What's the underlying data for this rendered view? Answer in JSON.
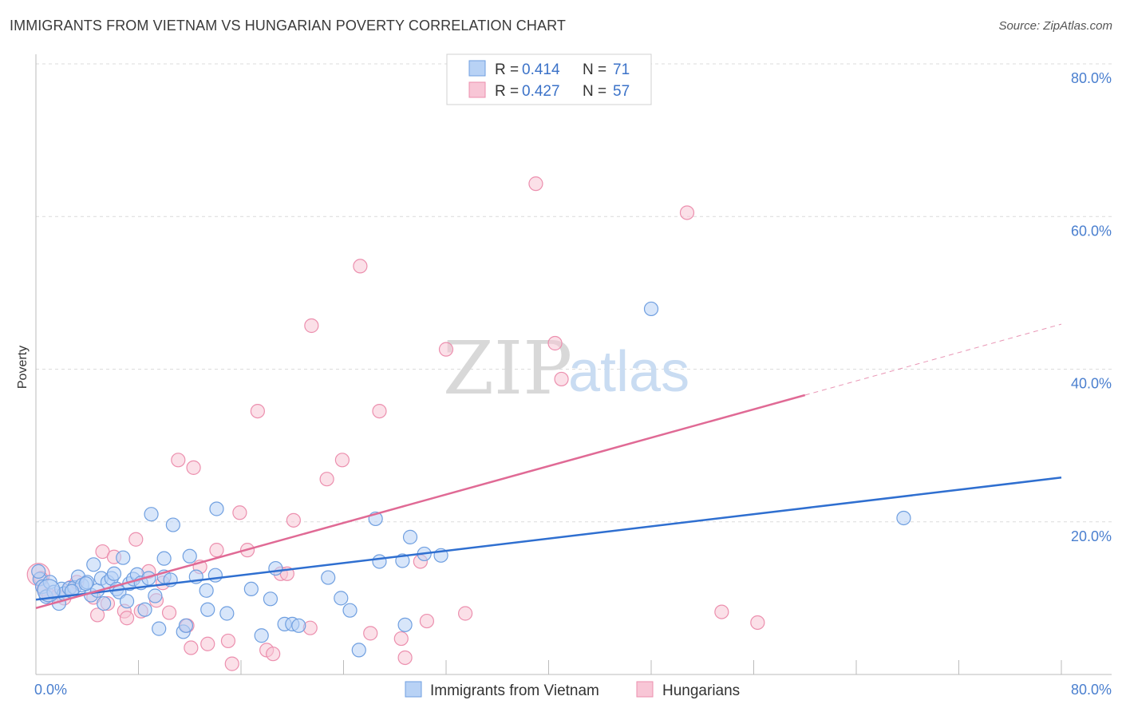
{
  "title": "IMMIGRANTS FROM VIETNAM VS HUNGARIAN POVERTY CORRELATION CHART",
  "source": "Source: ZipAtlas.com",
  "watermark": {
    "part1": "ZIP",
    "part2": "atlas"
  },
  "legend": {
    "r_label": "R =",
    "n_label": "N =",
    "rows": [
      {
        "r": "0.414",
        "n": "71"
      },
      {
        "r": "0.427",
        "n": "57"
      }
    ]
  },
  "colors": {
    "blue_fill": "#b8d2f5",
    "blue_stroke": "#6f9fe0",
    "blue_line": "#2f6fd0",
    "pink_fill": "#f8c6d6",
    "pink_stroke": "#ec8fae",
    "pink_line": "#e06a95",
    "grid": "#dcdcdc",
    "tick": "#4a7fcf"
  },
  "chart_data": {
    "type": "scatter",
    "title": "IMMIGRANTS FROM VIETNAM VS HUNGARIAN POVERTY CORRELATION CHART",
    "xlabel": "",
    "ylabel": "Poverty",
    "xlim": [
      0,
      80
    ],
    "ylim": [
      0,
      80
    ],
    "x_tick_labels": [
      "0.0%",
      "80.0%"
    ],
    "y_tick_labels": [
      "20.0%",
      "40.0%",
      "60.0%",
      "80.0%"
    ],
    "y_ticks": [
      20,
      40,
      60,
      80
    ],
    "series": [
      {
        "name": "Immigrants from Vietnam",
        "r": 0.414,
        "n": 71,
        "trend": {
          "x": [
            0,
            80
          ],
          "y": [
            9.8,
            25.8
          ],
          "solid_to": 80
        },
        "points": [
          [
            0.3,
            12.5
          ],
          [
            0.5,
            11.5
          ],
          [
            0.8,
            10.2
          ],
          [
            1.1,
            12.1
          ],
          [
            1.4,
            10.8
          ],
          [
            1.8,
            9.3
          ],
          [
            2.0,
            11.2
          ],
          [
            2.2,
            10.6
          ],
          [
            2.6,
            11.3
          ],
          [
            3.0,
            11.4
          ],
          [
            3.3,
            12.8
          ],
          [
            3.6,
            11.7
          ],
          [
            4.0,
            12.1
          ],
          [
            4.3,
            10.4
          ],
          [
            4.5,
            14.4
          ],
          [
            4.8,
            11.0
          ],
          [
            5.1,
            12.6
          ],
          [
            5.3,
            9.3
          ],
          [
            5.6,
            12.1
          ],
          [
            5.9,
            12.6
          ],
          [
            6.1,
            13.2
          ],
          [
            6.3,
            11.2
          ],
          [
            6.5,
            10.8
          ],
          [
            6.8,
            15.3
          ],
          [
            7.1,
            9.6
          ],
          [
            7.3,
            11.9
          ],
          [
            7.6,
            12.5
          ],
          [
            7.9,
            13.1
          ],
          [
            8.2,
            12.0
          ],
          [
            8.5,
            8.5
          ],
          [
            8.8,
            12.6
          ],
          [
            9.0,
            21.0
          ],
          [
            9.3,
            10.3
          ],
          [
            9.6,
            6.0
          ],
          [
            10.0,
            15.2
          ],
          [
            10.0,
            12.8
          ],
          [
            10.5,
            12.4
          ],
          [
            10.7,
            19.6
          ],
          [
            11.5,
            5.6
          ],
          [
            11.7,
            6.4
          ],
          [
            12.0,
            15.5
          ],
          [
            12.5,
            12.8
          ],
          [
            13.3,
            11.0
          ],
          [
            13.4,
            8.5
          ],
          [
            14.0,
            13.0
          ],
          [
            14.1,
            21.7
          ],
          [
            14.9,
            8.0
          ],
          [
            16.8,
            11.2
          ],
          [
            17.6,
            5.1
          ],
          [
            18.3,
            9.9
          ],
          [
            18.7,
            13.9
          ],
          [
            19.4,
            6.6
          ],
          [
            20.0,
            6.6
          ],
          [
            20.5,
            6.4
          ],
          [
            22.8,
            12.7
          ],
          [
            23.8,
            10.0
          ],
          [
            24.5,
            8.4
          ],
          [
            25.2,
            3.2
          ],
          [
            26.5,
            20.4
          ],
          [
            26.8,
            14.8
          ],
          [
            28.6,
            14.9
          ],
          [
            28.8,
            6.5
          ],
          [
            29.2,
            18.0
          ],
          [
            30.3,
            15.8
          ],
          [
            31.6,
            15.6
          ],
          [
            48.0,
            47.9
          ],
          [
            67.7,
            20.5
          ],
          [
            0.2,
            13.5
          ],
          [
            1.0,
            11.0
          ],
          [
            2.8,
            10.9
          ],
          [
            3.9,
            11.9
          ]
        ]
      },
      {
        "name": "Hungarians",
        "r": 0.427,
        "n": 57,
        "trend": {
          "x": [
            0,
            80
          ],
          "y": [
            8.7,
            45.9
          ],
          "solid_to": 60
        },
        "points": [
          [
            0.2,
            13.1
          ],
          [
            0.6,
            11.2
          ],
          [
            1.0,
            10.4
          ],
          [
            1.7,
            10.3
          ],
          [
            2.2,
            10.0
          ],
          [
            2.7,
            11.4
          ],
          [
            3.2,
            12.1
          ],
          [
            4.5,
            10.1
          ],
          [
            4.8,
            7.8
          ],
          [
            5.2,
            16.1
          ],
          [
            5.6,
            9.3
          ],
          [
            6.1,
            15.4
          ],
          [
            6.9,
            8.3
          ],
          [
            7.1,
            7.4
          ],
          [
            7.8,
            17.7
          ],
          [
            8.2,
            8.3
          ],
          [
            8.8,
            13.5
          ],
          [
            9.4,
            9.7
          ],
          [
            9.9,
            12.0
          ],
          [
            10.4,
            8.1
          ],
          [
            11.1,
            28.1
          ],
          [
            11.8,
            6.4
          ],
          [
            12.1,
            3.5
          ],
          [
            12.3,
            27.1
          ],
          [
            12.8,
            14.1
          ],
          [
            13.4,
            4.0
          ],
          [
            14.1,
            16.3
          ],
          [
            15.0,
            4.4
          ],
          [
            15.3,
            1.4
          ],
          [
            15.9,
            21.2
          ],
          [
            16.5,
            16.3
          ],
          [
            17.3,
            34.5
          ],
          [
            18.0,
            3.2
          ],
          [
            18.5,
            2.7
          ],
          [
            19.1,
            13.2
          ],
          [
            19.6,
            13.2
          ],
          [
            20.1,
            20.2
          ],
          [
            21.4,
            6.1
          ],
          [
            21.5,
            45.7
          ],
          [
            22.7,
            25.6
          ],
          [
            23.9,
            28.1
          ],
          [
            25.3,
            53.5
          ],
          [
            26.1,
            5.4
          ],
          [
            26.8,
            34.5
          ],
          [
            28.5,
            4.7
          ],
          [
            28.8,
            2.2
          ],
          [
            30.0,
            14.8
          ],
          [
            30.5,
            7.0
          ],
          [
            32.0,
            42.6
          ],
          [
            33.5,
            8.0
          ],
          [
            39.0,
            64.3
          ],
          [
            40.5,
            43.4
          ],
          [
            41.0,
            38.7
          ],
          [
            50.8,
            60.5
          ],
          [
            53.5,
            8.2
          ],
          [
            56.3,
            6.8
          ],
          [
            0.4,
            12.6
          ]
        ]
      }
    ]
  },
  "bottom_legend": [
    "Immigrants from Vietnam",
    "Hungarians"
  ]
}
